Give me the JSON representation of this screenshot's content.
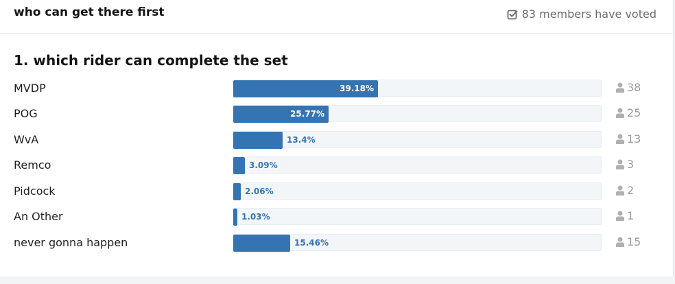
{
  "poll": {
    "title": "who can get there first",
    "votes_text": "83 members have voted",
    "question": "1. which rider can complete the set",
    "options": [
      {
        "label": "MVDP",
        "percent_label": "39.18%",
        "percent": 39.18,
        "count": "38"
      },
      {
        "label": "POG",
        "percent_label": "25.77%",
        "percent": 25.77,
        "count": "25"
      },
      {
        "label": "WvA",
        "percent_label": "13.4%",
        "percent": 13.4,
        "count": "13"
      },
      {
        "label": "Remco",
        "percent_label": "3.09%",
        "percent": 3.09,
        "count": "3"
      },
      {
        "label": "Pidcock",
        "percent_label": "2.06%",
        "percent": 2.06,
        "count": "2"
      },
      {
        "label": "An Other",
        "percent_label": "1.03%",
        "percent": 1.03,
        "count": "1"
      },
      {
        "label": "never gonna happen",
        "percent_label": "15.46%",
        "percent": 15.46,
        "count": "15"
      }
    ]
  },
  "colors": {
    "bar": "#3574b3",
    "track": "#f3f6f9",
    "muted": "#9a9a9a"
  },
  "icons": {
    "voted": "check-square-icon",
    "voters": "user-icon"
  }
}
